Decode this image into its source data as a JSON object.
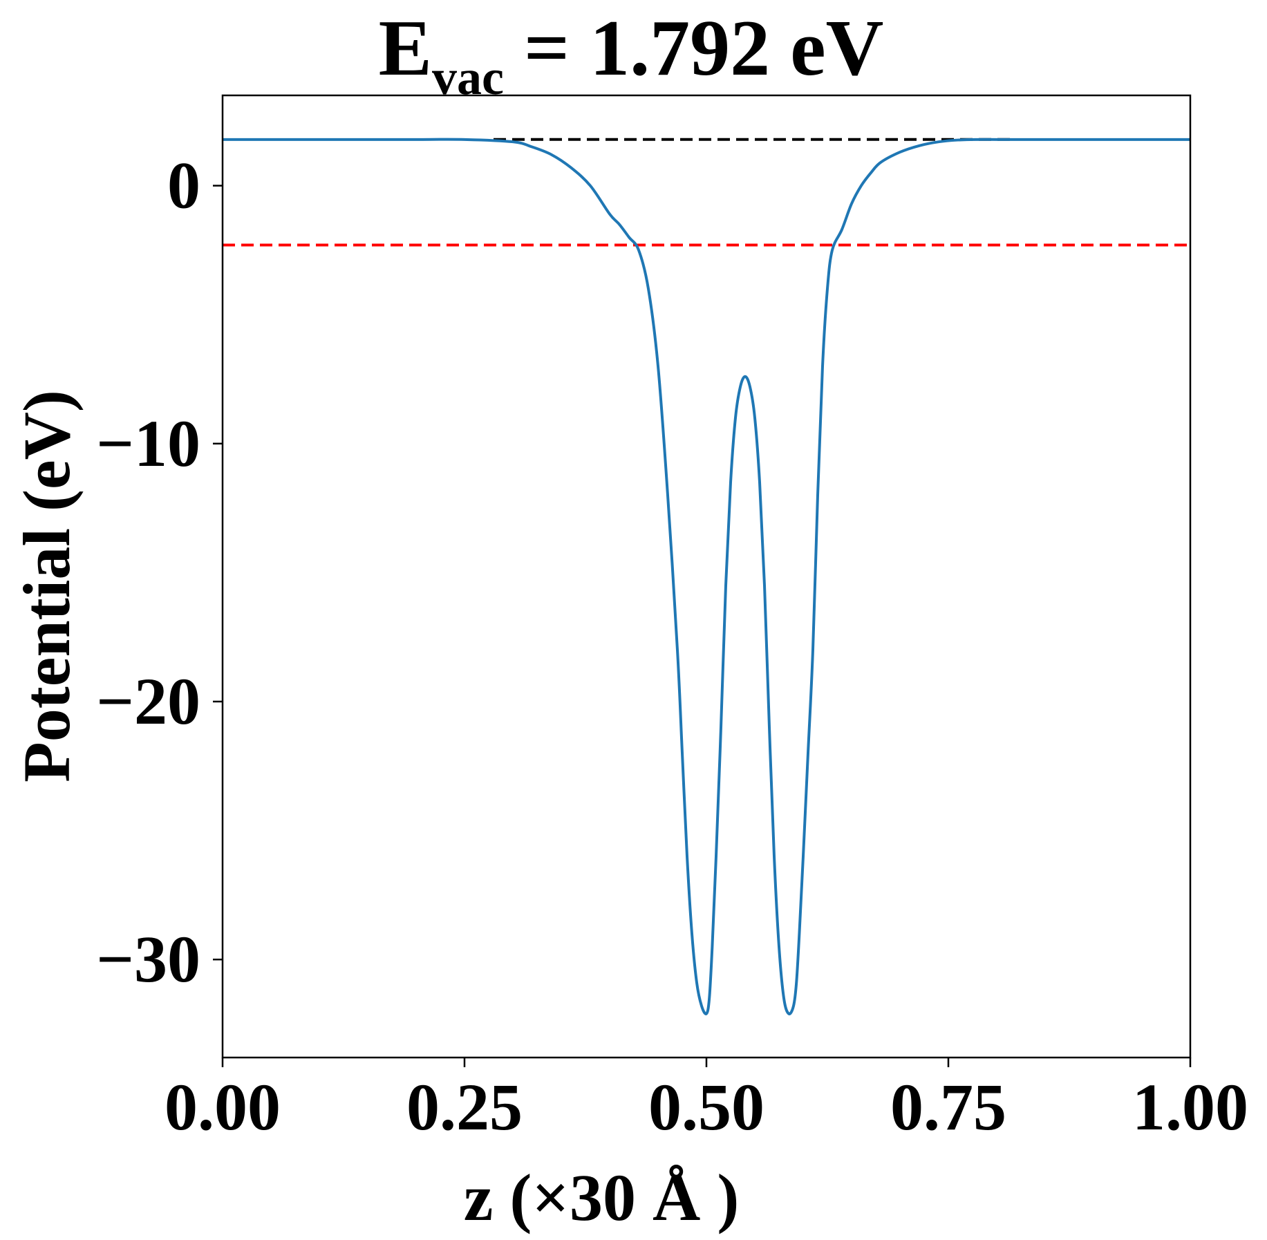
{
  "chart_data": {
    "type": "line",
    "title": {
      "main": "E",
      "subscript": "vac",
      "rest": " = 1.792 eV"
    },
    "xlabel": "z (×30 Å )",
    "ylabel": "Potential (eV)",
    "xlim": [
      0,
      1
    ],
    "ylim": [
      -33.8,
      3.5
    ],
    "x_ticks": [
      0,
      0.25,
      0.5,
      0.75,
      1.0
    ],
    "x_tick_labels": [
      "0.00",
      "0.25",
      "0.50",
      "0.75",
      "1.00"
    ],
    "y_ticks": [
      0,
      -10,
      -20,
      -30
    ],
    "y_tick_labels": [
      "0",
      "−10",
      "−20",
      "−30"
    ],
    "grid": false,
    "legend": "none",
    "reference_lines": [
      {
        "type": "hline",
        "y": 1.792,
        "style": "dashed",
        "color": "#000000",
        "x_range": [
          0.28,
          0.82
        ]
      },
      {
        "type": "hline",
        "y": -2.3,
        "style": "dashed",
        "color": "#ff0000",
        "x_range": [
          0,
          1
        ]
      }
    ],
    "series": [
      {
        "color": "#1f77b4",
        "style": "solid",
        "x": [
          0,
          0.05,
          0.1,
          0.15,
          0.2,
          0.25,
          0.3,
          0.32,
          0.34,
          0.36,
          0.38,
          0.4,
          0.41,
          0.42,
          0.43,
          0.44,
          0.45,
          0.46,
          0.47,
          0.475,
          0.48,
          0.485,
          0.49,
          0.495,
          0.5,
          0.503,
          0.506,
          0.51,
          0.515,
          0.52,
          0.525,
          0.53,
          0.535,
          0.54,
          0.545,
          0.55,
          0.555,
          0.56,
          0.565,
          0.57,
          0.575,
          0.58,
          0.585,
          0.59,
          0.593,
          0.596,
          0.6,
          0.605,
          0.61,
          0.615,
          0.62,
          0.625,
          0.63,
          0.64,
          0.65,
          0.66,
          0.67,
          0.68,
          0.7,
          0.72,
          0.74,
          0.76,
          0.78,
          0.8,
          0.85,
          0.9,
          0.95,
          1.0
        ],
        "y": [
          1.79,
          1.79,
          1.79,
          1.79,
          1.79,
          1.79,
          1.7,
          1.5,
          1.2,
          0.7,
          0.0,
          -1.1,
          -1.5,
          -2.0,
          -2.5,
          -4.0,
          -7.0,
          -12.0,
          -18.0,
          -22.0,
          -26.0,
          -29.0,
          -30.9,
          -31.8,
          -32.1,
          -31.5,
          -29.5,
          -26.0,
          -21.0,
          -15.5,
          -11.5,
          -9.0,
          -7.8,
          -7.4,
          -7.8,
          -9.0,
          -11.5,
          -15.5,
          -21.0,
          -26.0,
          -29.5,
          -31.5,
          -32.1,
          -31.8,
          -30.9,
          -29.0,
          -26.0,
          -22.0,
          -18.0,
          -12.0,
          -7.0,
          -4.0,
          -2.5,
          -1.7,
          -0.7,
          0.0,
          0.5,
          0.9,
          1.3,
          1.55,
          1.7,
          1.77,
          1.79,
          1.79,
          1.79,
          1.79,
          1.79,
          1.79
        ]
      }
    ]
  }
}
